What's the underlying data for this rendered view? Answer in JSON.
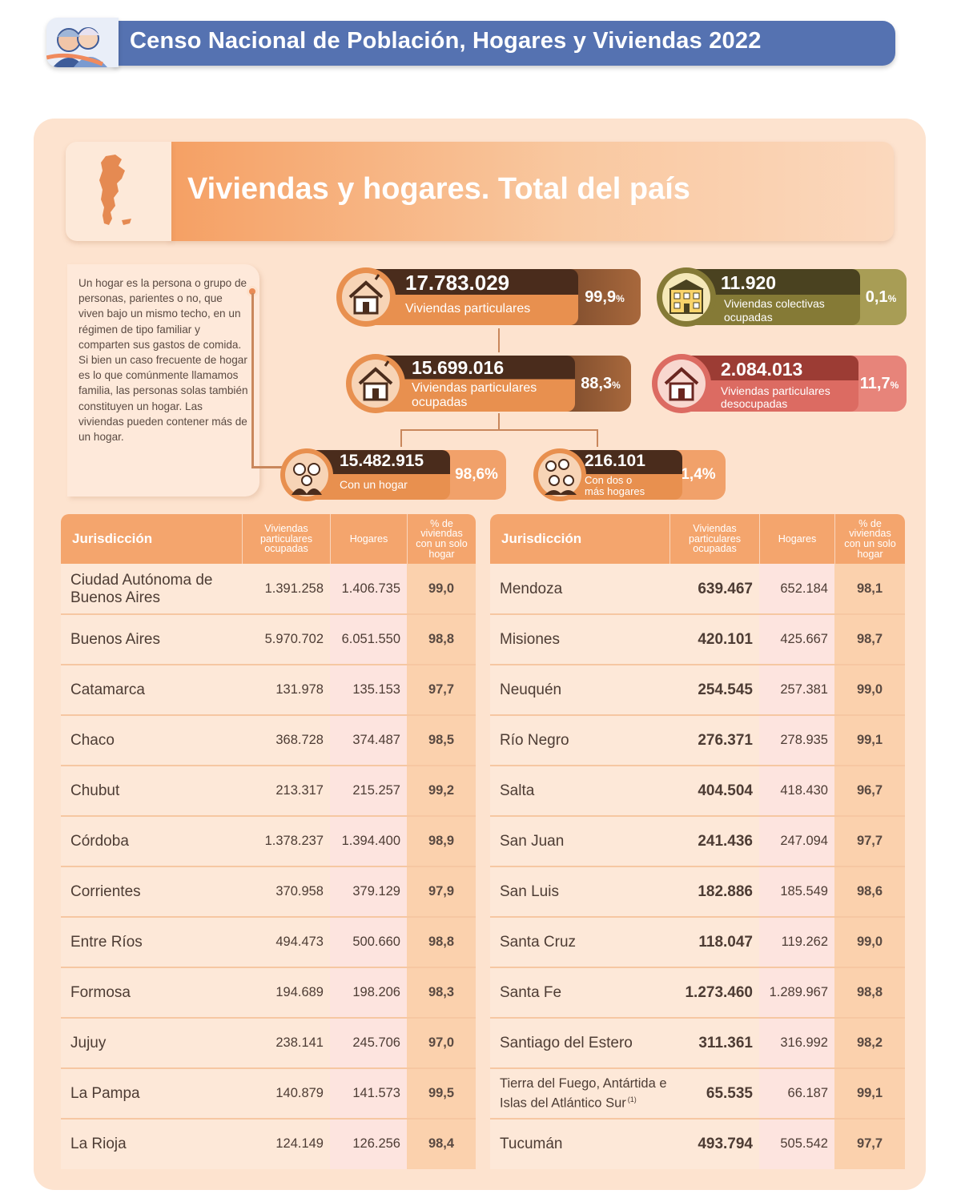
{
  "header": {
    "title": "Censo Nacional de Población, Hogares y Viviendas 2022"
  },
  "section": {
    "title": "Viviendas y hogares. Total del país"
  },
  "definition": {
    "text": "Un hogar es la persona o grupo de personas, parientes o no, que viven bajo un mismo techo, en un régimen de tipo familiar y comparten sus gastos de comida. Si bien un caso frecuente de hogar es lo que comúnmente llamamos familia, las personas solas también constituyen un hogar. Las viviendas pueden contener más de un hogar."
  },
  "stats": {
    "particulares": {
      "value": "17.783.029",
      "label": "Viviendas particulares",
      "pct": "99,9",
      "pct_sign": "%"
    },
    "colectivas": {
      "value": "11.920",
      "label_1": "Viviendas colectivas",
      "label_2": "ocupadas",
      "pct": "0,1",
      "pct_sign": "%"
    },
    "ocupadas": {
      "value": "15.699.016",
      "label_1": "Viviendas particulares",
      "label_2": "ocupadas",
      "pct": "88,3",
      "pct_sign": "%"
    },
    "desocupadas": {
      "value": "2.084.013",
      "label_1": "Viviendas particulares",
      "label_2": "desocupadas",
      "pct": "11,7",
      "pct_sign": "%"
    },
    "un_hogar": {
      "value": "15.482.915",
      "label": "Con un hogar",
      "pct": "98,6%"
    },
    "dos_hogares": {
      "value": "216.101",
      "label_1": "Con dos o",
      "label_2": "más hogares",
      "pct": "1,4%"
    }
  },
  "table_headers": {
    "jurisdiccion": "Jurisdicción",
    "viviendas_1": "Viviendas",
    "viviendas_2": "particulares",
    "viviendas_3": "ocupadas",
    "hogares": "Hogares",
    "pct_1": "% de",
    "pct_2": "viviendas",
    "pct_3": "con un solo",
    "pct_4": "hogar"
  },
  "table_left": [
    {
      "name": "Ciudad Autónoma de Buenos Aires",
      "viviendas": "1.391.258",
      "hogares": "1.406.735",
      "pct": "99,0"
    },
    {
      "name": "Buenos Aires",
      "viviendas": "5.970.702",
      "hogares": "6.051.550",
      "pct": "98,8"
    },
    {
      "name": "Catamarca",
      "viviendas": "131.978",
      "hogares": "135.153",
      "pct": "97,7"
    },
    {
      "name": "Chaco",
      "viviendas": "368.728",
      "hogares": "374.487",
      "pct": "98,5"
    },
    {
      "name": "Chubut",
      "viviendas": "213.317",
      "hogares": "215.257",
      "pct": "99,2"
    },
    {
      "name": "Córdoba",
      "viviendas": "1.378.237",
      "hogares": "1.394.400",
      "pct": "98,9"
    },
    {
      "name": "Corrientes",
      "viviendas": "370.958",
      "hogares": "379.129",
      "pct": "97,9"
    },
    {
      "name": "Entre Ríos",
      "viviendas": "494.473",
      "hogares": "500.660",
      "pct": "98,8"
    },
    {
      "name": "Formosa",
      "viviendas": "194.689",
      "hogares": "198.206",
      "pct": "98,3"
    },
    {
      "name": "Jujuy",
      "viviendas": "238.141",
      "hogares": "245.706",
      "pct": "97,0"
    },
    {
      "name": "La Pampa",
      "viviendas": "140.879",
      "hogares": "141.573",
      "pct": "99,5"
    },
    {
      "name": "La Rioja",
      "viviendas": "124.149",
      "hogares": "126.256",
      "pct": "98,4"
    }
  ],
  "table_right": [
    {
      "name": "Mendoza",
      "viviendas": "639.467",
      "hogares": "652.184",
      "pct": "98,1"
    },
    {
      "name": "Misiones",
      "viviendas": "420.101",
      "hogares": "425.667",
      "pct": "98,7"
    },
    {
      "name": "Neuquén",
      "viviendas": "254.545",
      "hogares": "257.381",
      "pct": "99,0"
    },
    {
      "name": "Río Negro",
      "viviendas": "276.371",
      "hogares": "278.935",
      "pct": "99,1"
    },
    {
      "name": "Salta",
      "viviendas": "404.504",
      "hogares": "418.430",
      "pct": "96,7"
    },
    {
      "name": "San Juan",
      "viviendas": "241.436",
      "hogares": "247.094",
      "pct": "97,7"
    },
    {
      "name": "San Luis",
      "viviendas": "182.886",
      "hogares": "185.549",
      "pct": "98,6"
    },
    {
      "name": "Santa Cruz",
      "viviendas": "118.047",
      "hogares": "119.262",
      "pct": "99,0"
    },
    {
      "name": "Santa Fe",
      "viviendas": "1.273.460",
      "hogares": "1.289.967",
      "pct": "98,8"
    },
    {
      "name": "Santiago del Estero",
      "viviendas": "311.361",
      "hogares": "316.992",
      "pct": "98,2"
    },
    {
      "name": "Tierra del Fuego, Antártida e Islas del Atlántico Sur",
      "footnote": "(1)",
      "viviendas": "65.535",
      "hogares": "66.187",
      "pct": "99,1"
    },
    {
      "name": "Tucumán",
      "viviendas": "493.794",
      "hogares": "505.542",
      "pct": "97,7"
    }
  ],
  "colors": {
    "banner": "#5572b1",
    "panel": "#fde3cf",
    "accent_orange": "#f4a56d",
    "brown_dark": "#6b4028",
    "olive": "#8a7c33",
    "rose": "#d86c62"
  },
  "icons": [
    "census-logo-icon",
    "argentina-map-icon",
    "house-icon",
    "building-icon",
    "family-icon"
  ]
}
